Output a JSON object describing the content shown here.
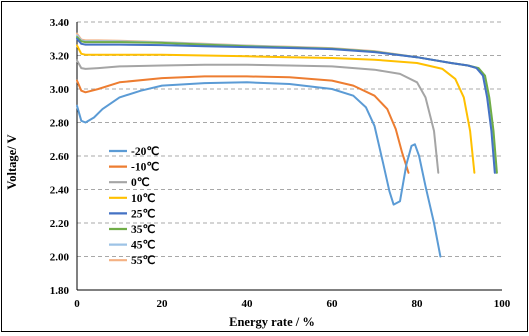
{
  "chart_data": {
    "type": "line",
    "title": "",
    "xlabel": "Energy rate / %",
    "ylabel": "Voltage/ V",
    "xlim": [
      0,
      100
    ],
    "ylim": [
      1.8,
      3.4
    ],
    "x_ticks": [
      "0",
      "20",
      "40",
      "60",
      "80",
      "100"
    ],
    "y_ticks": [
      "1.80",
      "2.00",
      "2.20",
      "2.40",
      "2.60",
      "2.80",
      "3.00",
      "3.20",
      "3.40"
    ],
    "grid": "horizontal-dashed",
    "legend_placement": "left",
    "series": [
      {
        "name": "-20℃",
        "color": "#5b9bd5",
        "x": [
          0,
          1,
          2,
          4,
          6,
          10,
          15,
          20,
          30,
          40,
          50,
          60,
          65,
          68,
          70,
          72,
          73.5,
          74.5,
          76,
          77.5,
          78.7,
          79.5,
          80.5,
          82,
          84,
          85.5
        ],
        "y": [
          2.9,
          2.81,
          2.8,
          2.83,
          2.88,
          2.95,
          2.99,
          3.02,
          3.035,
          3.04,
          3.03,
          3.0,
          2.96,
          2.89,
          2.78,
          2.56,
          2.39,
          2.31,
          2.33,
          2.55,
          2.66,
          2.67,
          2.6,
          2.42,
          2.2,
          2.0
        ]
      },
      {
        "name": "-10℃",
        "color": "#ed7d31",
        "x": [
          0,
          1,
          2,
          5,
          10,
          20,
          30,
          40,
          50,
          60,
          65,
          70,
          73,
          75,
          76.5,
          78
        ],
        "y": [
          3.05,
          2.99,
          2.98,
          3.0,
          3.04,
          3.065,
          3.075,
          3.075,
          3.07,
          3.05,
          3.02,
          2.96,
          2.88,
          2.76,
          2.62,
          2.5
        ]
      },
      {
        "name": "0℃",
        "color": "#a5a5a5",
        "x": [
          0,
          1,
          2,
          5,
          10,
          20,
          30,
          40,
          50,
          60,
          70,
          76,
          80,
          82,
          84,
          85
        ],
        "y": [
          3.17,
          3.125,
          3.12,
          3.125,
          3.135,
          3.14,
          3.145,
          3.145,
          3.14,
          3.135,
          3.115,
          3.09,
          3.04,
          2.95,
          2.75,
          2.5
        ]
      },
      {
        "name": "10℃",
        "color": "#ffc000",
        "x": [
          0,
          1,
          2,
          5,
          10,
          20,
          30,
          40,
          50,
          60,
          70,
          80,
          86,
          89,
          91,
          92.5,
          93.5
        ],
        "y": [
          3.26,
          3.21,
          3.205,
          3.205,
          3.205,
          3.205,
          3.2,
          3.195,
          3.19,
          3.185,
          3.175,
          3.155,
          3.12,
          3.06,
          2.95,
          2.75,
          2.5
        ]
      },
      {
        "name": "25℃",
        "color": "#4472c4",
        "x": [
          0,
          1,
          2,
          5,
          10,
          20,
          30,
          40,
          50,
          60,
          70,
          80,
          88,
          92,
          94,
          95.5,
          96.5,
          97.5,
          98.3
        ],
        "y": [
          3.3,
          3.27,
          3.265,
          3.265,
          3.265,
          3.262,
          3.255,
          3.25,
          3.245,
          3.238,
          3.22,
          3.19,
          3.155,
          3.14,
          3.125,
          3.08,
          2.95,
          2.75,
          2.5
        ]
      },
      {
        "name": "35℃",
        "color": "#70ad47",
        "x": [
          0,
          1,
          2,
          5,
          10,
          20,
          30,
          40,
          50,
          60,
          70,
          80,
          88,
          92,
          94.5,
          96,
          97,
          98,
          98.8
        ],
        "y": [
          3.31,
          3.285,
          3.28,
          3.28,
          3.28,
          3.275,
          3.265,
          3.255,
          3.248,
          3.24,
          3.222,
          3.19,
          3.155,
          3.14,
          3.125,
          3.08,
          2.95,
          2.75,
          2.5
        ]
      },
      {
        "name": "45℃",
        "color": "#9dc3e6",
        "x": [
          0,
          1,
          2,
          5,
          10,
          20,
          30,
          40,
          50,
          60,
          70,
          80,
          88,
          92,
          94.3,
          95.8,
          96.8,
          97.8,
          98.6
        ],
        "y": [
          3.32,
          3.29,
          3.285,
          3.285,
          3.284,
          3.278,
          3.268,
          3.258,
          3.25,
          3.242,
          3.224,
          3.19,
          3.155,
          3.14,
          3.125,
          3.08,
          2.95,
          2.75,
          2.5
        ]
      },
      {
        "name": "55℃",
        "color": "#f4b183",
        "x": [
          0,
          1,
          2,
          5,
          10,
          20,
          30,
          40,
          50,
          60,
          70,
          80,
          88,
          92,
          94.2,
          95.7,
          96.7,
          97.7,
          98.5
        ],
        "y": [
          3.33,
          3.295,
          3.29,
          3.29,
          3.288,
          3.28,
          3.27,
          3.26,
          3.252,
          3.244,
          3.226,
          3.19,
          3.155,
          3.14,
          3.125,
          3.08,
          2.95,
          2.75,
          2.5
        ]
      }
    ]
  }
}
